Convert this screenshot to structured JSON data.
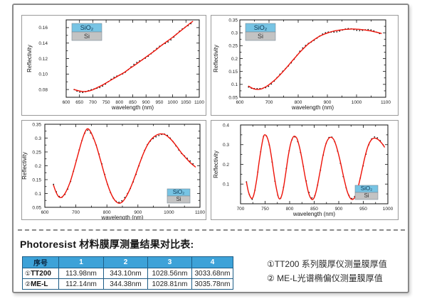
{
  "table_section": {
    "title": "Photoresist 材料膜厚测量结果对比表:",
    "table": {
      "headers": [
        "序号",
        "1",
        "2",
        "3",
        "4"
      ],
      "rows": [
        {
          "mark": "①",
          "name": "TT200",
          "values": [
            "113.98nm",
            "343.10nm",
            "1028.56nm",
            "3033.68nm"
          ]
        },
        {
          "mark": "②",
          "name": "ME-L",
          "values": [
            "112.14nm",
            "344.38nm",
            "1028.81nm",
            "3035.78nm"
          ]
        }
      ],
      "header_bg": "#3da2d8",
      "border_color": "#1c5c86"
    },
    "notes": [
      "①TT200 系列膜厚仪测量膜厚值",
      "② ME-L光谱椭偏仪测量膜厚值"
    ]
  },
  "colors": {
    "curve_red": "#ee1208",
    "dots_black": "#161616",
    "legend_sio2_bg": "#77c4e4",
    "legend_si_bg": "#c3c3c3",
    "panel_border": "#9a9a9a",
    "outer_border": "#8a8a8a"
  },
  "chart_data": [
    {
      "type": "line",
      "title": "",
      "xlabel": "wavelength (nm)",
      "ylabel": "Reflectivity",
      "xlim": [
        600,
        1100
      ],
      "ylim": [
        0.07,
        0.17
      ],
      "xticks": [
        600,
        650,
        700,
        750,
        800,
        850,
        900,
        950,
        1000,
        1050,
        1100
      ],
      "xtick_labels": [
        "600",
        "650",
        "700",
        "750",
        "800",
        "850",
        "900",
        "950",
        "1000",
        "1050",
        "1100"
      ],
      "xminor": [],
      "yticks": [
        0.08,
        0.1,
        0.12,
        0.14,
        0.16
      ],
      "ytick_labels": [
        "0.08",
        "0.10",
        "0.12",
        "0.14",
        "0.16"
      ],
      "yminor": [
        0.07,
        0.09,
        0.11,
        0.13,
        0.15,
        0.17
      ],
      "legend": {
        "position": "top-left",
        "items": [
          {
            "label": "SiO₂",
            "bg": "#77c4e4",
            "fg": "#0d3550"
          },
          {
            "label": "Si",
            "bg": "#c3c3c3",
            "fg": "#333333"
          }
        ]
      },
      "series": [
        {
          "name": "fitted curve",
          "color": "#ee1208",
          "points": [
            [
              630,
              0.08
            ],
            [
              645,
              0.0785
            ],
            [
              660,
              0.0775
            ],
            [
              675,
              0.0775
            ],
            [
              690,
              0.0785
            ],
            [
              705,
              0.0805
            ],
            [
              720,
              0.083
            ],
            [
              740,
              0.0865
            ],
            [
              760,
              0.0905
            ],
            [
              780,
              0.0945
            ],
            [
              800,
              0.0985
            ],
            [
              820,
              0.1025
            ],
            [
              840,
              0.1075
            ],
            [
              860,
              0.112
            ],
            [
              880,
              0.117
            ],
            [
              900,
              0.122
            ],
            [
              920,
              0.127
            ],
            [
              940,
              0.132
            ],
            [
              960,
              0.1375
            ],
            [
              980,
              0.1425
            ],
            [
              1000,
              0.1475
            ],
            [
              1020,
              0.153
            ],
            [
              1040,
              0.1585
            ],
            [
              1060,
              0.164
            ],
            [
              1075,
              0.168
            ]
          ]
        },
        {
          "name": "measured data (dots)",
          "color": "#161616",
          "derived": "follows fitted curve"
        }
      ]
    },
    {
      "type": "line",
      "title": "",
      "xlabel": "wavelength (nm)",
      "ylabel": "Reflectivity",
      "xlim": [
        600,
        1100
      ],
      "ylim": [
        0.05,
        0.35
      ],
      "xticks": [
        600,
        700,
        800,
        900,
        1000,
        1100
      ],
      "xtick_labels": [
        "600",
        "700",
        "800",
        "900",
        "1000",
        "1100"
      ],
      "xminor": [
        650,
        750,
        850,
        950,
        1050
      ],
      "yticks": [
        0.05,
        0.1,
        0.15,
        0.2,
        0.25,
        0.3,
        0.35
      ],
      "ytick_labels": [
        "0.05",
        "0.1",
        "0.15",
        "0.2",
        "0.25",
        "0.3",
        "0.35"
      ],
      "yminor": [
        0.075,
        0.125,
        0.175,
        0.225,
        0.275,
        0.325
      ],
      "legend": {
        "position": "top-left",
        "items": [
          {
            "label": "SiO₂",
            "bg": "#77c4e4",
            "fg": "#0d3550"
          },
          {
            "label": "Si",
            "bg": "#c3c3c3",
            "fg": "#333333"
          }
        ]
      },
      "series": [
        {
          "name": "fitted curve",
          "color": "#ee1208",
          "points": [
            [
              630,
              0.093
            ],
            [
              642,
              0.0855
            ],
            [
              652,
              0.0815
            ],
            [
              662,
              0.0805
            ],
            [
              672,
              0.082
            ],
            [
              682,
              0.0865
            ],
            [
              695,
              0.095
            ],
            [
              708,
              0.106
            ],
            [
              722,
              0.119
            ],
            [
              736,
              0.135
            ],
            [
              750,
              0.152
            ],
            [
              764,
              0.17
            ],
            [
              778,
              0.189
            ],
            [
              792,
              0.207
            ],
            [
              806,
              0.225
            ],
            [
              820,
              0.241
            ],
            [
              834,
              0.256
            ],
            [
              848,
              0.268
            ],
            [
              862,
              0.279
            ],
            [
              876,
              0.288
            ],
            [
              890,
              0.295
            ],
            [
              905,
              0.301
            ],
            [
              920,
              0.306
            ],
            [
              940,
              0.31
            ],
            [
              960,
              0.313
            ],
            [
              980,
              0.3145
            ],
            [
              1000,
              0.314
            ],
            [
              1020,
              0.312
            ],
            [
              1045,
              0.308
            ],
            [
              1065,
              0.303
            ],
            [
              1085,
              0.2975
            ]
          ]
        },
        {
          "name": "measured data (dots)",
          "color": "#161616",
          "derived": "follows fitted curve"
        }
      ]
    },
    {
      "type": "line",
      "title": "",
      "xlabel": "wavelength (nm)",
      "ylabel": "Reflectivity",
      "xlim": [
        600,
        1100
      ],
      "ylim": [
        0.05,
        0.35
      ],
      "xticks": [
        600,
        700,
        800,
        900,
        1000,
        1100
      ],
      "xtick_labels": [
        "600",
        "700",
        "800",
        "900",
        "1000",
        "1100"
      ],
      "xminor": [
        650,
        750,
        850,
        950,
        1050
      ],
      "yticks": [
        0.05,
        0.1,
        0.15,
        0.2,
        0.25,
        0.3,
        0.35
      ],
      "ytick_labels": [
        "0.05",
        "0.1",
        "0.15",
        "0.2",
        "0.25",
        "0.3",
        "0.35"
      ],
      "yminor": [
        0.075,
        0.125,
        0.175,
        0.225,
        0.275,
        0.325
      ],
      "legend": {
        "position": "bottom-right",
        "items": [
          {
            "label": "SiO₂",
            "bg": "#77c4e4",
            "fg": "#0d3550"
          },
          {
            "label": "Si",
            "bg": "#c3c3c3",
            "fg": "#333333"
          }
        ]
      },
      "series": [
        {
          "name": "fitted curve",
          "color": "#ee1208",
          "points": [
            [
              628,
              0.13
            ],
            [
              636,
              0.105
            ],
            [
              644,
              0.089
            ],
            [
              652,
              0.085
            ],
            [
              660,
              0.092
            ],
            [
              670,
              0.11
            ],
            [
              682,
              0.143
            ],
            [
              694,
              0.188
            ],
            [
              706,
              0.237
            ],
            [
              718,
              0.285
            ],
            [
              728,
              0.318
            ],
            [
              736,
              0.333
            ],
            [
              744,
              0.329
            ],
            [
              754,
              0.308
            ],
            [
              766,
              0.272
            ],
            [
              778,
              0.226
            ],
            [
              790,
              0.178
            ],
            [
              802,
              0.133
            ],
            [
              814,
              0.098
            ],
            [
              826,
              0.075
            ],
            [
              838,
              0.065
            ],
            [
              850,
              0.07
            ],
            [
              862,
              0.088
            ],
            [
              876,
              0.12
            ],
            [
              890,
              0.16
            ],
            [
              904,
              0.204
            ],
            [
              918,
              0.245
            ],
            [
              932,
              0.278
            ],
            [
              946,
              0.299
            ],
            [
              960,
              0.311
            ],
            [
              972,
              0.315
            ],
            [
              984,
              0.314
            ],
            [
              996,
              0.306
            ],
            [
              1010,
              0.291
            ],
            [
              1025,
              0.27
            ],
            [
              1040,
              0.247
            ],
            [
              1055,
              0.228
            ],
            [
              1070,
              0.21
            ],
            [
              1085,
              0.196
            ]
          ]
        },
        {
          "name": "measured data (dots)",
          "color": "#161616",
          "derived": "follows fitted curve"
        }
      ]
    },
    {
      "type": "line",
      "title": "",
      "xlabel": "wavelength (nm)",
      "ylabel": "Reflectivity",
      "xlim": [
        700,
        1000
      ],
      "ylim": [
        0,
        0.4
      ],
      "xticks": [
        700,
        750,
        800,
        850,
        900,
        950,
        1000
      ],
      "xtick_labels": [
        "700",
        "750",
        "800",
        "850",
        "900",
        "950",
        "1000"
      ],
      "xminor": [
        725,
        775,
        825,
        875,
        925,
        975
      ],
      "yticks": [
        0.1,
        0.2,
        0.3,
        0.4
      ],
      "ytick_labels": [
        "0.1",
        "0.2",
        "0.3",
        "0.4"
      ],
      "yminor": [
        0.05,
        0.15,
        0.25,
        0.35
      ],
      "legend": {
        "position": "bottom-right",
        "items": [
          {
            "label": "SiO₂",
            "bg": "#77c4e4",
            "fg": "#0d3550"
          },
          {
            "label": "Si",
            "bg": "#c3c3c3",
            "fg": "#333333"
          }
        ]
      },
      "series": [
        {
          "name": "fitted curve",
          "color": "#ee1208",
          "points": [
            [
              712,
              0.11
            ],
            [
              716,
              0.062
            ],
            [
              720,
              0.035
            ],
            [
              724,
              0.028
            ],
            [
              728,
              0.055
            ],
            [
              733,
              0.125
            ],
            [
              738,
              0.215
            ],
            [
              743,
              0.295
            ],
            [
              747,
              0.342
            ],
            [
              750,
              0.35
            ],
            [
              754,
              0.338
            ],
            [
              759,
              0.295
            ],
            [
              764,
              0.22
            ],
            [
              769,
              0.135
            ],
            [
              774,
              0.065
            ],
            [
              778,
              0.028
            ],
            [
              782,
              0.03
            ],
            [
              787,
              0.075
            ],
            [
              792,
              0.155
            ],
            [
              797,
              0.24
            ],
            [
              802,
              0.305
            ],
            [
              807,
              0.338
            ],
            [
              811,
              0.342
            ],
            [
              815,
              0.33
            ],
            [
              820,
              0.288
            ],
            [
              826,
              0.215
            ],
            [
              832,
              0.13
            ],
            [
              838,
              0.06
            ],
            [
              843,
              0.028
            ],
            [
              847,
              0.022
            ],
            [
              851,
              0.038
            ],
            [
              856,
              0.085
            ],
            [
              862,
              0.165
            ],
            [
              868,
              0.245
            ],
            [
              874,
              0.305
            ],
            [
              880,
              0.333
            ],
            [
              885,
              0.337
            ],
            [
              890,
              0.325
            ],
            [
              896,
              0.285
            ],
            [
              903,
              0.215
            ],
            [
              910,
              0.135
            ],
            [
              917,
              0.065
            ],
            [
              923,
              0.03
            ],
            [
              928,
              0.022
            ],
            [
              933,
              0.035
            ],
            [
              939,
              0.08
            ],
            [
              946,
              0.155
            ],
            [
              953,
              0.235
            ],
            [
              960,
              0.295
            ],
            [
              967,
              0.326
            ],
            [
              973,
              0.333
            ],
            [
              979,
              0.328
            ],
            [
              985,
              0.315
            ],
            [
              990,
              0.3
            ],
            [
              993,
              0.288
            ]
          ]
        },
        {
          "name": "measured data (dots)",
          "color": "#161616",
          "derived": "follows fitted curve"
        }
      ]
    }
  ]
}
